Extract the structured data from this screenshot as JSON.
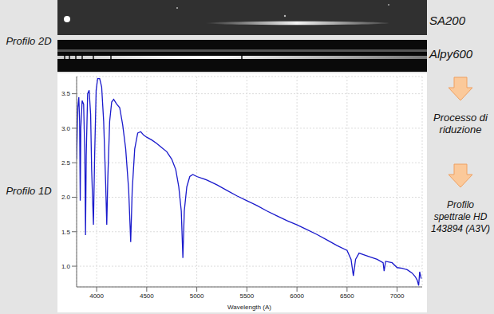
{
  "labels": {
    "left": [
      "Profilo 2D",
      "Profilo 1D"
    ],
    "strips": [
      "SA200",
      "Alpy600"
    ],
    "steps": [
      "Processo di riduzione",
      "Profilo spettrale HD 143894 (A3V)"
    ]
  },
  "chart_data": {
    "type": "line",
    "xlabel": "Wavelength (A)",
    "x": [
      3800,
      3812,
      3822,
      3830,
      3836,
      3842,
      3855,
      3870,
      3882,
      3889,
      3896,
      3910,
      3925,
      3940,
      3950,
      3968,
      3980,
      3995,
      4010,
      4030,
      4050,
      4070,
      4090,
      4101,
      4112,
      4130,
      4150,
      4170,
      4200,
      4230,
      4260,
      4290,
      4320,
      4340,
      4355,
      4380,
      4410,
      4440,
      4470,
      4500,
      4550,
      4600,
      4650,
      4700,
      4750,
      4790,
      4820,
      4845,
      4861,
      4875,
      4900,
      4930,
      4960,
      5000,
      5100,
      5200,
      5300,
      5400,
      5500,
      5600,
      5700,
      5800,
      5900,
      6000,
      6100,
      6200,
      6300,
      6400,
      6500,
      6540,
      6563,
      6585,
      6620,
      6700,
      6800,
      6860,
      6870,
      6885,
      6950,
      7000,
      7050,
      7100,
      7150,
      7180,
      7200,
      7215,
      7225,
      7240
    ],
    "values": [
      2.55,
      3.3,
      3.45,
      3.1,
      1.95,
      3.0,
      3.4,
      3.35,
      2.6,
      1.45,
      2.6,
      3.5,
      3.55,
      3.2,
      2.4,
      1.6,
      2.6,
      3.55,
      3.72,
      3.72,
      3.6,
      3.1,
      2.2,
      1.6,
      2.3,
      3.1,
      3.38,
      3.42,
      3.35,
      3.3,
      3.05,
      2.7,
      2.1,
      1.35,
      2.1,
      2.7,
      2.93,
      2.95,
      2.9,
      2.87,
      2.83,
      2.78,
      2.72,
      2.66,
      2.55,
      2.4,
      2.15,
      1.8,
      1.12,
      1.8,
      2.15,
      2.3,
      2.33,
      2.3,
      2.25,
      2.18,
      2.1,
      2.02,
      1.95,
      1.88,
      1.8,
      1.73,
      1.66,
      1.6,
      1.53,
      1.46,
      1.38,
      1.3,
      1.23,
      1.1,
      0.86,
      1.1,
      1.19,
      1.15,
      1.1,
      1.05,
      0.93,
      1.07,
      1.05,
      0.98,
      0.97,
      0.95,
      0.9,
      0.85,
      0.8,
      0.72,
      0.92,
      0.82
    ],
    "color": "#1a1acc",
    "xlim": [
      3800,
      7250
    ],
    "xticks": [
      4000,
      4500,
      5000,
      5500,
      6000,
      6500,
      7000
    ],
    "ylim": [
      0.7,
      3.75
    ],
    "yticks": [
      {
        "value": 1,
        "label": "1.0"
      },
      {
        "value": 1.5,
        "label": "1.5"
      },
      {
        "value": 2,
        "label": "2.0"
      },
      {
        "value": 2.5,
        "label": "2.5"
      },
      {
        "value": 3,
        "label": "3.0"
      },
      {
        "value": 3.5,
        "label": "3.5"
      }
    ],
    "grid": true
  }
}
